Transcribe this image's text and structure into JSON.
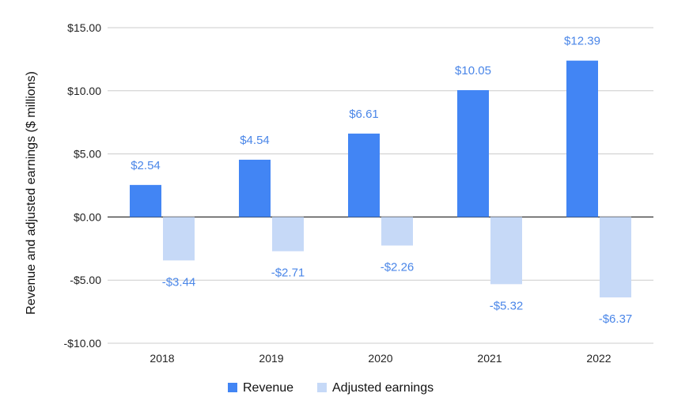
{
  "chart_data": {
    "type": "bar",
    "title": "",
    "xlabel": "",
    "ylabel": "Revenue and adjusted earnings ($ millions)",
    "categories": [
      "2018",
      "2019",
      "2020",
      "2021",
      "2022"
    ],
    "series": [
      {
        "name": "Revenue",
        "color": "#4285f4",
        "values": [
          2.54,
          4.54,
          6.61,
          10.05,
          12.39
        ],
        "labels": [
          "$2.54",
          "$4.54",
          "$6.61",
          "$10.05",
          "$12.39"
        ]
      },
      {
        "name": "Adjusted earnings",
        "color": "#c6d9f7",
        "values": [
          -3.44,
          -2.71,
          -2.26,
          -5.32,
          -6.37
        ],
        "labels": [
          "-$3.44",
          "-$2.71",
          "-$2.26",
          "-$5.32",
          "-$6.37"
        ]
      }
    ],
    "ylim": [
      -10,
      15
    ],
    "yticks": [
      15,
      10,
      5,
      0,
      -5,
      -10
    ],
    "ytick_labels": [
      "$15.00",
      "$10.00",
      "$5.00",
      "$0.00",
      "-$5.00",
      "-$10.00"
    ],
    "data_label_color": "#4a86e8",
    "grid": true,
    "legend_position": "bottom"
  }
}
